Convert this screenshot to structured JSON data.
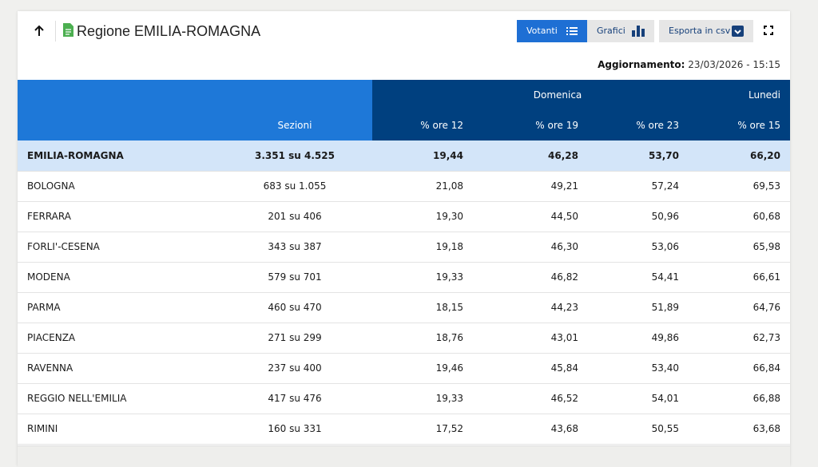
{
  "header": {
    "title": "Regione EMILIA-ROMAGNA",
    "buttons": [
      "Votanti",
      "Grafici",
      "Esporta in csv"
    ],
    "update_label": "Aggiornamento:",
    "update_value": "23/03/2026 - 15:15"
  },
  "table": {
    "group_headers": [
      "Domenica",
      "Lunedi"
    ],
    "columns": [
      "Sezioni",
      "% ore 12",
      "% ore 19",
      "% ore 23",
      "% ore 15"
    ],
    "rows": [
      [
        "EMILIA-ROMAGNA",
        "3.351 su 4.525",
        "19,44",
        "46,28",
        "53,70",
        "66,20"
      ],
      [
        "BOLOGNA",
        "683 su 1.055",
        "21,08",
        "49,21",
        "57,24",
        "69,53"
      ],
      [
        "FERRARA",
        "201 su 406",
        "19,30",
        "44,50",
        "50,96",
        "60,68"
      ],
      [
        "FORLI'-CESENA",
        "343 su 387",
        "19,18",
        "46,30",
        "53,06",
        "65,98"
      ],
      [
        "MODENA",
        "579 su 701",
        "19,33",
        "46,82",
        "54,41",
        "66,61"
      ],
      [
        "PARMA",
        "460 su 470",
        "18,15",
        "44,23",
        "51,89",
        "64,76"
      ],
      [
        "PIACENZA",
        "271 su 299",
        "18,76",
        "43,01",
        "49,86",
        "62,73"
      ],
      [
        "RAVENNA",
        "237 su 400",
        "19,46",
        "45,84",
        "53,40",
        "66,84"
      ],
      [
        "REGGIO NELL'EMILIA",
        "417 su 476",
        "19,33",
        "46,52",
        "54,01",
        "66,88"
      ],
      [
        "RIMINI",
        "160 su 331",
        "17,52",
        "43,68",
        "50,55",
        "63,68"
      ]
    ]
  }
}
